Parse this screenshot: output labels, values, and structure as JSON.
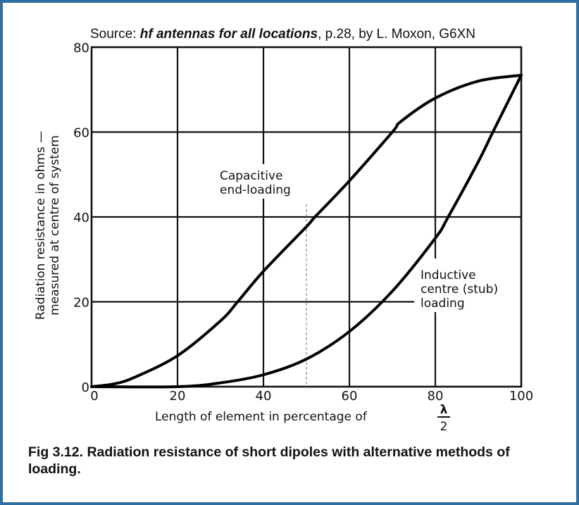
{
  "source_line": {
    "prefix": "Source:  ",
    "title": "hf antennas for all locations",
    "suffix": ", p.28, by L. Moxon, G6XN"
  },
  "caption": "Fig 3.12. Radiation resistance of short dipoles with alternative methods of loading.",
  "frame_color": "#2f6f9f",
  "chart_data": {
    "type": "line",
    "title": "",
    "xlabel": "Length of element in percentage of",
    "xlabel_fraction": {
      "numerator": "λ",
      "denominator": "2"
    },
    "ylabel": [
      "Radiation resistance in ohms —",
      "measured at centre of system"
    ],
    "xlim": [
      0,
      100
    ],
    "ylim": [
      0,
      80
    ],
    "xticks": [
      "0",
      "20",
      "40",
      "60",
      "80",
      "100"
    ],
    "yticks": [
      "0",
      "20",
      "40",
      "60",
      "80"
    ],
    "grid": true,
    "reference_line": {
      "x": 50,
      "y_top": 43,
      "style": "dashed",
      "color": "#888888"
    },
    "annotations": [
      {
        "series": "capacitive",
        "lines": [
          "Capacitive",
          "end-loading"
        ]
      },
      {
        "series": "inductive",
        "lines": [
          "Inductive",
          "centre (stub)",
          "loading"
        ]
      }
    ],
    "series": [
      {
        "id": "capacitive",
        "x": [
          0,
          5,
          10,
          20,
          30,
          34,
          40,
          50,
          52,
          60,
          70,
          72,
          80,
          90,
          100
        ],
        "y": [
          0,
          0.6,
          2.2,
          7.3,
          15.5,
          20,
          27.2,
          37.7,
          40,
          48.5,
          60,
          62.5,
          68,
          72,
          73.4
        ]
      },
      {
        "id": "inductive",
        "x": [
          0,
          20,
          30,
          40,
          50,
          60,
          70,
          80,
          83,
          90,
          93.4,
          100
        ],
        "y": [
          0,
          0,
          0.9,
          2.8,
          6.5,
          13,
          22.5,
          35,
          40,
          53,
          60,
          73.4
        ]
      }
    ]
  }
}
